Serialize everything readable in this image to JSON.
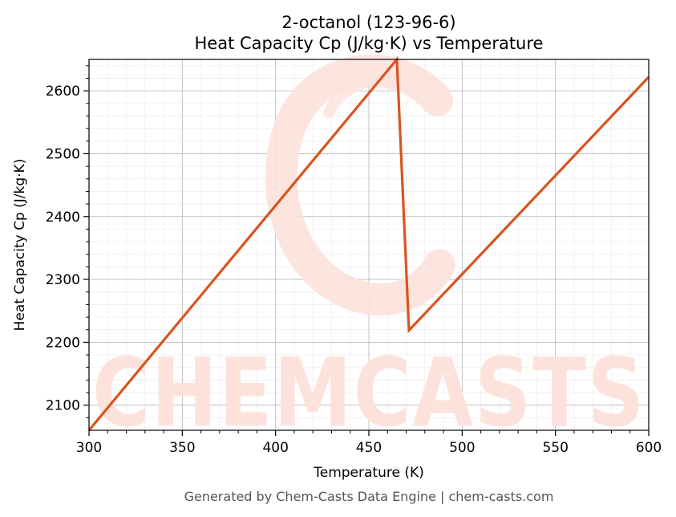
{
  "chart_data": {
    "type": "line",
    "title_line1": "2-octanol (123-96-6)",
    "title_line2": "Heat Capacity Cp (J/kg·K) vs Temperature",
    "xlabel": "Temperature (K)",
    "ylabel": "Heat Capacity Cp (J/kg·K)",
    "xlim": [
      300,
      600
    ],
    "ylim": [
      2060,
      2650
    ],
    "xticks": [
      300,
      350,
      400,
      450,
      500,
      550,
      600
    ],
    "yticks": [
      2100,
      2200,
      2300,
      2400,
      2500,
      2600
    ],
    "grid": true,
    "series": [
      {
        "color": "#d9541e",
        "x": [
          300,
          465,
          471.5,
          600
        ],
        "y": [
          2060,
          2650,
          2219,
          2622
        ]
      }
    ]
  },
  "footer": "Generated by Chem-Casts Data Engine | chem-casts.com",
  "watermark": {
    "text": "CHEMCASTS",
    "color": "#fde2dc"
  }
}
